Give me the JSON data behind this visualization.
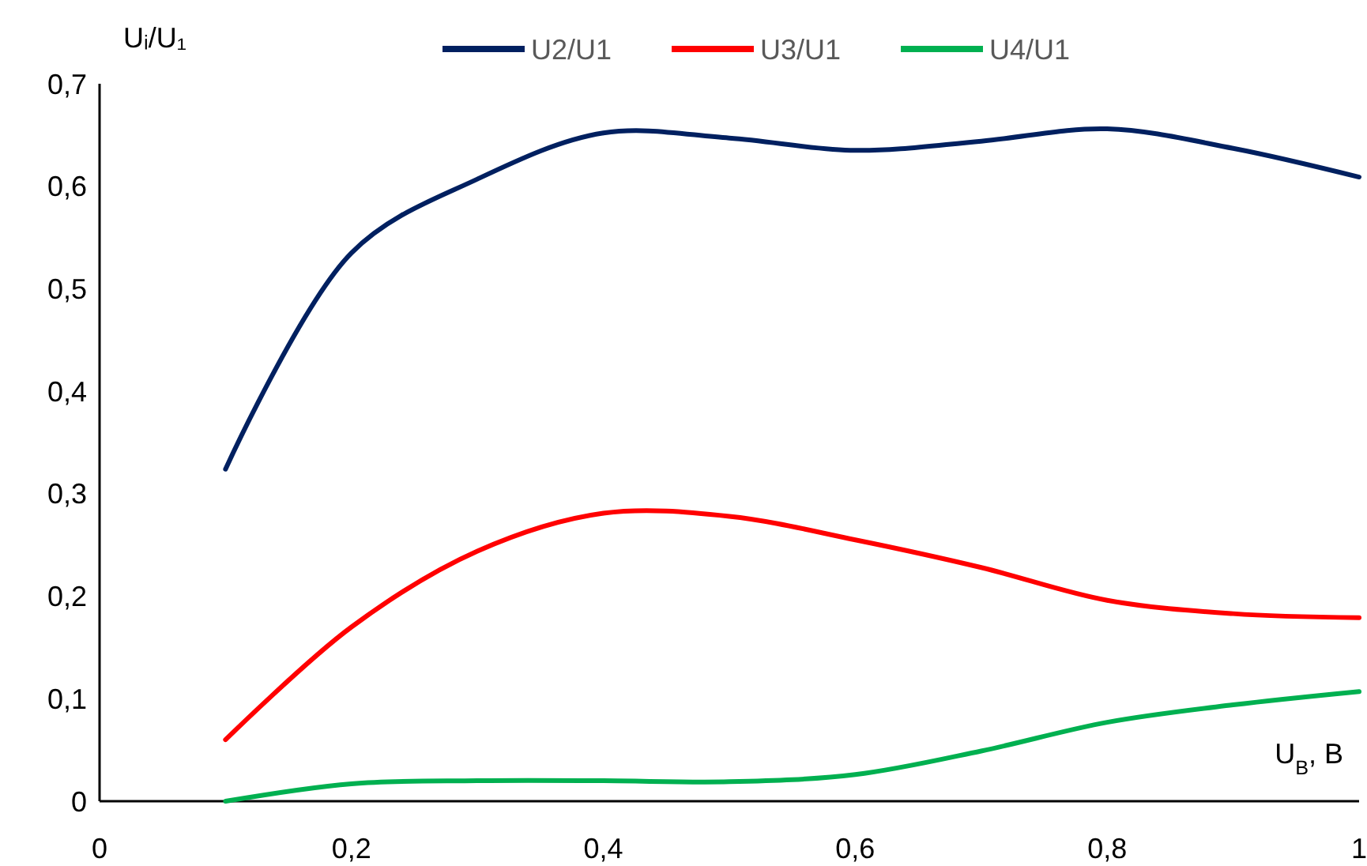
{
  "chart_data": {
    "type": "line",
    "ylabel": "Uᵢ/U₁",
    "xlabel": "U$_{B}$, B",
    "x": [
      0.1,
      0.2,
      0.3,
      0.4,
      0.5,
      0.6,
      0.7,
      0.8,
      0.9,
      1.0
    ],
    "series": [
      {
        "name": "U2/U1",
        "color": "#002060",
        "values": [
          0.324,
          0.535,
          0.607,
          0.652,
          0.647,
          0.635,
          0.644,
          0.656,
          0.637,
          0.609
        ]
      },
      {
        "name": "U3/U1",
        "color": "#ff0000",
        "values": [
          0.06,
          0.17,
          0.244,
          0.281,
          0.278,
          0.255,
          0.228,
          0.196,
          0.183,
          0.179
        ]
      },
      {
        "name": "U4/U1",
        "color": "#00b050",
        "values": [
          0,
          0.017,
          0.02,
          0.02,
          0.019,
          0.026,
          0.049,
          0.077,
          0.094,
          0.107
        ]
      }
    ],
    "xlim": [
      0,
      1
    ],
    "xticks": [
      0,
      {
        "value": 0.2,
        "label": "0,2"
      },
      {
        "value": 0.4,
        "label": "0,4"
      },
      {
        "value": 0.6,
        "label": "0,6"
      },
      {
        "value": 0.8,
        "label": "0,8"
      },
      1
    ],
    "ylim": [
      0,
      0.7
    ],
    "yticks": [
      0,
      {
        "value": 0.1,
        "label": "0,1"
      },
      {
        "value": 0.2,
        "label": "0,2"
      },
      {
        "value": 0.3,
        "label": "0,3"
      },
      {
        "value": 0.4,
        "label": "0,4"
      },
      {
        "value": 0.5,
        "label": "0,5"
      },
      {
        "value": 0.6,
        "label": "0,6"
      },
      {
        "value": 0.7,
        "label": "0,7"
      }
    ],
    "legend": "top",
    "marker": "none",
    "line_style": "solid",
    "grid": false
  }
}
